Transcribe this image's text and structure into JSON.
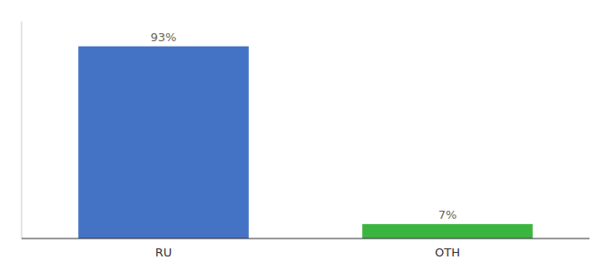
{
  "chart_data": {
    "type": "bar",
    "categories": [
      "RU",
      "OTH"
    ],
    "values": [
      93,
      7
    ],
    "value_labels": [
      "93%",
      "7%"
    ],
    "colors": [
      "#4472c4",
      "#3cb540"
    ],
    "ylim": [
      0,
      105
    ],
    "yticks": [],
    "data_labels": true,
    "tick_labels": "x",
    "grid": false
  }
}
